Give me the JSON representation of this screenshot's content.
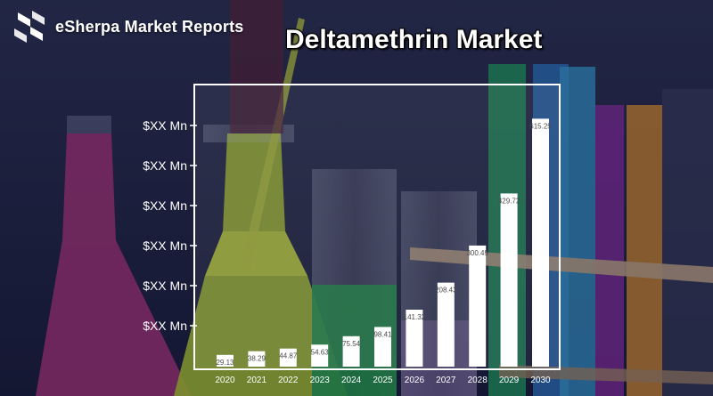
{
  "brand": {
    "name": "eSherpa Market Reports",
    "logo_icon": "esherpa-logo-icon"
  },
  "colors": {
    "bars": "#ffffff",
    "frame": "#ffffff",
    "background": "#1c1f3a"
  },
  "chart_data": {
    "type": "bar",
    "title": "Deltamethrin Market",
    "xlabel": "",
    "ylabel": "",
    "categories": [
      "2020",
      "2021",
      "2022",
      "2023",
      "2024",
      "2025",
      "2026",
      "2027",
      "2028",
      "2029",
      "2030"
    ],
    "values": [
      29.13,
      38.29,
      44.87,
      54.63,
      75.54,
      98.41,
      141.32,
      208.43,
      300.49,
      429.72,
      615.25
    ],
    "data_labels": [
      "29.13",
      "38.29",
      "44.87",
      "54.63",
      "75.54",
      "98.41",
      "141.32",
      "208.43",
      "300.49",
      "429.72",
      "615.25"
    ],
    "y_tick_labels": [
      "$XX Mn",
      "$XX Mn",
      "$XX Mn",
      "$XX Mn",
      "$XX Mn",
      "$XX Mn"
    ],
    "ylim": [
      0,
      700
    ],
    "grid": false
  }
}
